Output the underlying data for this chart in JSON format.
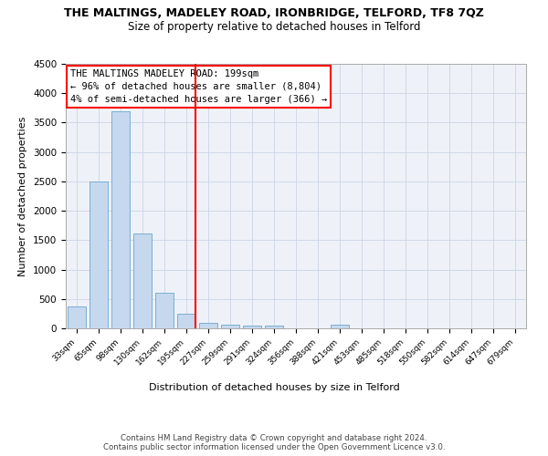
{
  "title": "THE MALTINGS, MADELEY ROAD, IRONBRIDGE, TELFORD, TF8 7QZ",
  "subtitle": "Size of property relative to detached houses in Telford",
  "xlabel": "Distribution of detached houses by size in Telford",
  "ylabel": "Number of detached properties",
  "categories": [
    "33sqm",
    "65sqm",
    "98sqm",
    "130sqm",
    "162sqm",
    "195sqm",
    "227sqm",
    "259sqm",
    "291sqm",
    "324sqm",
    "356sqm",
    "388sqm",
    "421sqm",
    "453sqm",
    "485sqm",
    "518sqm",
    "550sqm",
    "582sqm",
    "614sqm",
    "647sqm",
    "679sqm"
  ],
  "values": [
    375,
    2500,
    3700,
    1620,
    600,
    250,
    100,
    60,
    40,
    40,
    0,
    0,
    55,
    0,
    0,
    0,
    0,
    0,
    0,
    0,
    0
  ],
  "bar_color": "#c5d8ee",
  "bar_edge_color": "#7aaed4",
  "vline_color": "red",
  "vline_pos": 5.4,
  "annotation_text": "THE MALTINGS MADELEY ROAD: 199sqm\n← 96% of detached houses are smaller (8,804)\n4% of semi-detached houses are larger (366) →",
  "annotation_box_color": "red",
  "ylim": [
    0,
    4500
  ],
  "yticks": [
    0,
    500,
    1000,
    1500,
    2000,
    2500,
    3000,
    3500,
    4000,
    4500
  ],
  "grid_color": "#d0d8e8",
  "background_color": "#eef2f8",
  "footer": "Contains HM Land Registry data © Crown copyright and database right 2024.\nContains public sector information licensed under the Open Government Licence v3.0.",
  "title_fontsize": 9,
  "subtitle_fontsize": 8.5,
  "xlabel_fontsize": 8,
  "ylabel_fontsize": 8,
  "annotation_fontsize": 7.5
}
